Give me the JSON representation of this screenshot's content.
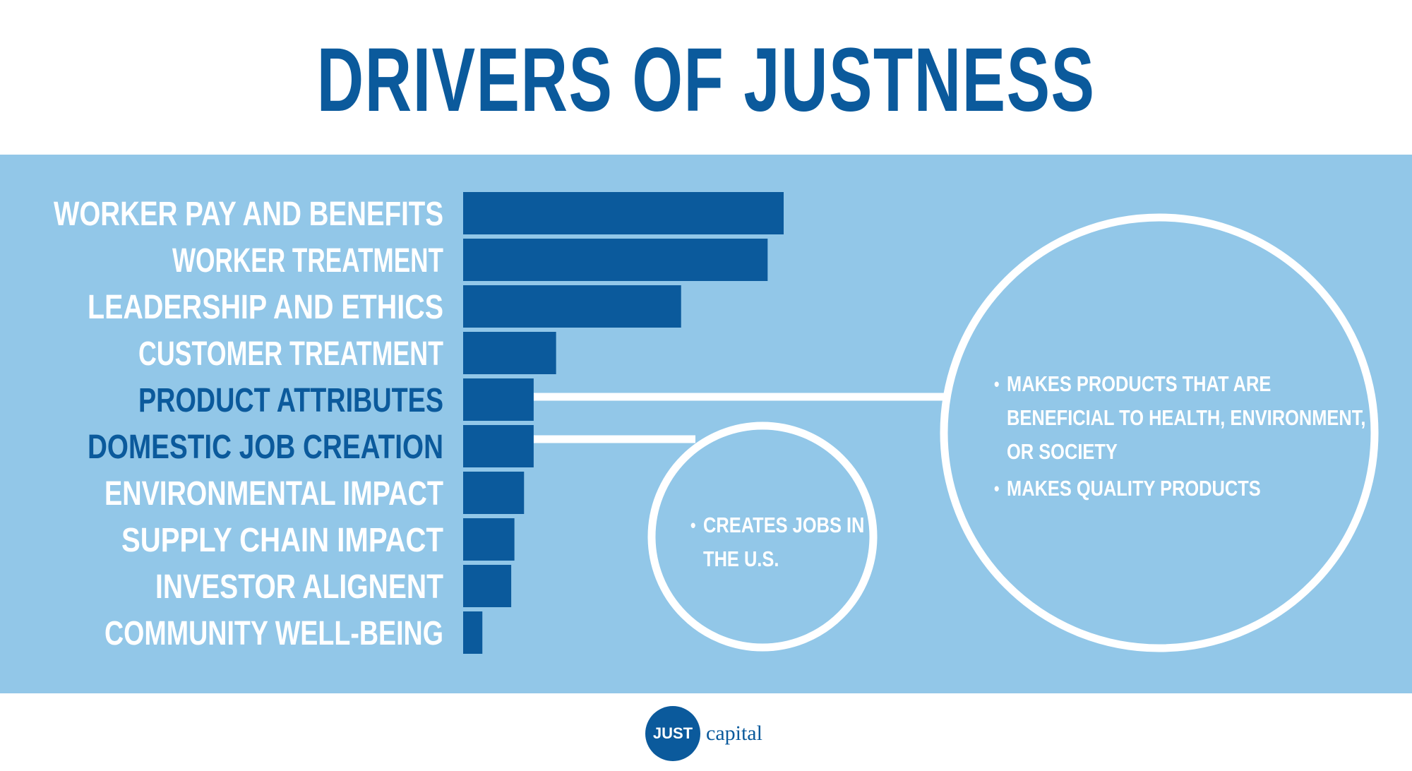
{
  "title": "DRIVERS OF JUSTNESS",
  "chart_data": {
    "type": "bar",
    "orientation": "horizontal",
    "categories": [
      "WORKER PAY AND BENEFITS",
      "WORKER TREATMENT",
      "LEADERSHIP AND ETHICS",
      "CUSTOMER TREATMENT",
      "PRODUCT ATTRIBUTES",
      "DOMESTIC JOB CREATION",
      "ENVIRONMENTAL IMPACT",
      "SUPPLY CHAIN IMPACT",
      "INVESTOR ALIGNENT",
      "COMMUNITY WELL-BEING"
    ],
    "values": [
      100,
      95,
      68,
      29,
      22,
      22,
      19,
      16,
      15,
      6
    ],
    "highlighted": [
      "PRODUCT ATTRIBUTES",
      "DOMESTIC JOB CREATION"
    ],
    "xlim": [
      0,
      100
    ],
    "grid": false,
    "bar_color": "#0b5a9c",
    "label_color": "#ffffff",
    "highlight_label_color": "#0b5a9c"
  },
  "callouts": {
    "product_attributes": {
      "bullets": [
        "MAKES PRODUCTS THAT ARE",
        "BENEFICIAL TO HEALTH, ENVIRONMENT,",
        "OR SOCIETY",
        "MAKES QUALITY PRODUCTS"
      ]
    },
    "domestic_job_creation": {
      "bullets": [
        "CREATES JOBS IN",
        "THE U.S."
      ]
    }
  },
  "logo": {
    "badge": "JUST",
    "word": "capital"
  },
  "colors": {
    "primary": "#0b5a9c",
    "panel": "#92c7e8",
    "background": "#ffffff"
  }
}
